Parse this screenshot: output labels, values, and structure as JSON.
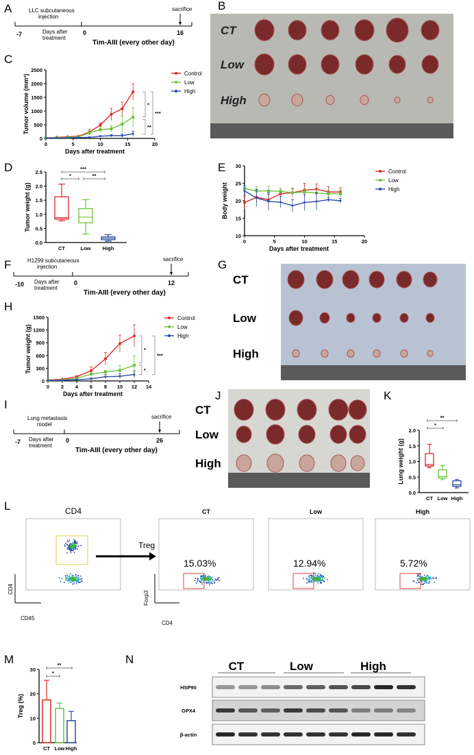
{
  "panel_labels": [
    "A",
    "B",
    "C",
    "D",
    "E",
    "F",
    "G",
    "H",
    "I",
    "J",
    "K",
    "L",
    "M",
    "N"
  ],
  "timeline_a": {
    "injection": "LLC subcutaneous",
    "injection2": "injection",
    "start": "-7",
    "days": "Days after",
    "days2": "treatment",
    "zero": "0",
    "treatment": "Tim-AIII (every other day)",
    "end": "16",
    "sacrifice": "sacrifice"
  },
  "timeline_f": {
    "injection": "H1299 subcutaneous",
    "injection2": "injection",
    "start": "-10",
    "days": "Days after",
    "days2": "treatment",
    "zero": "0",
    "treatment": "Tim-AIII (every other day)",
    "end": "12",
    "sacrifice": "sacrifice"
  },
  "timeline_i": {
    "injection": "Lung metastasis",
    "injection2": "model",
    "start": "-7",
    "days": "Days after",
    "days2": "treatment",
    "zero": "0",
    "treatment": "Tim-AIII (every other day)",
    "end": "26",
    "sacrifice": "sacrifice"
  },
  "photo_b": {
    "rows": [
      "CT",
      "Low",
      "High"
    ]
  },
  "photo_g": {
    "rows": [
      "CT",
      "Low",
      "High"
    ]
  },
  "photo_j": {
    "rows": [
      "CT",
      "Low",
      "High"
    ]
  },
  "flow": {
    "gate_title": "CD4",
    "gate_x": "CD45",
    "gate_y": "CD4",
    "arrow_label": "Treg",
    "x_label": "CD4",
    "y_label": "Foxp3",
    "groups": [
      {
        "name": "CT",
        "percent": "15.03%"
      },
      {
        "name": "Low",
        "percent": "12.94%"
      },
      {
        "name": "High",
        "percent": "5.72%"
      }
    ]
  },
  "western": {
    "groups": [
      "CT",
      "Low",
      "High"
    ],
    "rows": [
      "HSP90",
      "GPX4",
      "β-actin"
    ]
  },
  "colors": {
    "Control": "#e02828",
    "Low": "#6cc13c",
    "High": "#2b4aa8"
  },
  "chart_data": [
    {
      "id": "C",
      "type": "line",
      "xlabel": "Days after treatment",
      "ylabel": "Tumor volume (mm³)",
      "xlim": [
        0,
        20
      ],
      "ylim": [
        0,
        2500
      ],
      "xticks": [
        0,
        5,
        10,
        15,
        20
      ],
      "yticks": [
        0,
        500,
        1000,
        1500,
        2000,
        2500
      ],
      "legend": "right",
      "x": [
        0,
        2,
        4,
        6,
        8,
        10,
        12,
        14,
        16
      ],
      "series": [
        {
          "name": "Control",
          "values": [
            20,
            40,
            60,
            80,
            230,
            490,
            880,
            1080,
            1700
          ],
          "errors": [
            10,
            10,
            15,
            20,
            100,
            80,
            220,
            250,
            300
          ]
        },
        {
          "name": "Low",
          "values": [
            15,
            25,
            40,
            60,
            200,
            320,
            350,
            520,
            770
          ],
          "errors": [
            10,
            10,
            10,
            20,
            80,
            100,
            120,
            300,
            350
          ]
        },
        {
          "name": "High",
          "values": [
            10,
            15,
            20,
            30,
            40,
            80,
            100,
            100,
            170
          ],
          "errors": [
            5,
            5,
            5,
            10,
            10,
            20,
            40,
            60,
            100
          ]
        }
      ],
      "annotations": [
        "*",
        "**",
        "***"
      ]
    },
    {
      "id": "D",
      "type": "box",
      "ylabel": "Tumor weight (g)",
      "ylim": [
        0,
        2.5
      ],
      "yticks": [
        "0.0",
        "0.5",
        "1.0",
        "1.5",
        "2.0",
        "2.5"
      ],
      "categories": [
        "CT",
        "Low",
        "High"
      ],
      "boxes": [
        {
          "min": 0.77,
          "q1": 0.83,
          "median": 0.88,
          "q3": 1.62,
          "max": 2.07
        },
        {
          "min": 0.3,
          "q1": 0.7,
          "median": 0.9,
          "q3": 1.2,
          "max": 1.52
        },
        {
          "min": 0.05,
          "q1": 0.1,
          "median": 0.15,
          "q3": 0.2,
          "max": 0.28
        }
      ],
      "annotations": [
        "*",
        "**",
        "***"
      ]
    },
    {
      "id": "E",
      "type": "line",
      "xlabel": "Days after treatment",
      "ylabel": "Body weight",
      "xlim": [
        0,
        20
      ],
      "ylim": [
        10,
        30
      ],
      "xticks": [
        0,
        5,
        10,
        15,
        20
      ],
      "yticks": [
        10,
        15,
        20,
        25,
        30
      ],
      "legend": "right",
      "x": [
        0,
        2,
        4,
        6,
        8,
        10,
        12,
        14,
        16
      ],
      "series": [
        {
          "name": "Control",
          "values": [
            19.5,
            21,
            20.3,
            22,
            22.3,
            23,
            23.3,
            22.5,
            22.5
          ],
          "errors": [
            2,
            1.5,
            1.5,
            1.5,
            1.3,
            2,
            1.5,
            1.5,
            1.2
          ]
        },
        {
          "name": "Low",
          "values": [
            23.5,
            22.8,
            22.8,
            22.7,
            22.3,
            22.5,
            22.2,
            22,
            22
          ],
          "errors": [
            0.8,
            1.2,
            1.3,
            0.8,
            1,
            1,
            1,
            1,
            1
          ]
        },
        {
          "name": "High",
          "values": [
            22.8,
            20.8,
            19.8,
            19.6,
            18.6,
            19.5,
            19.8,
            20.3,
            20
          ],
          "errors": [
            1.5,
            2.5,
            2.5,
            1.6,
            1.8,
            2.3,
            2.5,
            0.6,
            0.7
          ]
        }
      ]
    },
    {
      "id": "H",
      "type": "line",
      "xlabel": "Days after treatment",
      "ylabel": "Tumor weight (g)",
      "xlim": [
        0,
        14
      ],
      "ylim": [
        0,
        1500
      ],
      "xticks": [
        0,
        2,
        4,
        6,
        8,
        10,
        12,
        14
      ],
      "yticks": [
        0,
        300,
        600,
        900,
        1200,
        1500
      ],
      "legend": "right",
      "x": [
        0,
        2,
        4,
        6,
        8,
        10,
        12
      ],
      "series": [
        {
          "name": "Control",
          "values": [
            20,
            40,
            100,
            240,
            520,
            880,
            1060
          ],
          "errors": [
            10,
            10,
            20,
            90,
            150,
            200,
            260
          ]
        },
        {
          "name": "Low",
          "values": [
            15,
            25,
            60,
            160,
            210,
            250,
            370
          ],
          "errors": [
            10,
            10,
            20,
            30,
            40,
            110,
            220
          ]
        },
        {
          "name": "High",
          "values": [
            10,
            15,
            30,
            50,
            100,
            110,
            150
          ],
          "errors": [
            5,
            5,
            10,
            20,
            50,
            60,
            80
          ]
        }
      ],
      "annotations": [
        "*",
        "*",
        "***"
      ]
    },
    {
      "id": "K",
      "type": "box",
      "ylabel": "Lung weight (g)",
      "ylim": [
        0,
        2.0
      ],
      "yticks": [
        "0.0",
        "0.5",
        "1.0",
        "1.5",
        "2.0"
      ],
      "categories": [
        "CT",
        "Low",
        "High"
      ],
      "boxes": [
        {
          "min": 0.8,
          "q1": 0.85,
          "median": 0.9,
          "q3": 1.25,
          "max": 1.55
        },
        {
          "min": 0.42,
          "q1": 0.47,
          "median": 0.52,
          "q3": 0.73,
          "max": 0.87
        },
        {
          "min": 0.15,
          "q1": 0.2,
          "median": 0.25,
          "q3": 0.38,
          "max": 0.42
        }
      ],
      "annotations": [
        "*",
        "**"
      ]
    },
    {
      "id": "M",
      "type": "bar",
      "ylabel": "Treg (%)",
      "ylim": [
        0,
        30
      ],
      "yticks": [
        0,
        10,
        20,
        30
      ],
      "categories": [
        "CT",
        "Low",
        "High"
      ],
      "values": [
        17.5,
        14,
        9
      ],
      "errors": [
        8,
        2.2,
        3.8
      ],
      "annotations": [
        "*",
        "**"
      ]
    }
  ]
}
